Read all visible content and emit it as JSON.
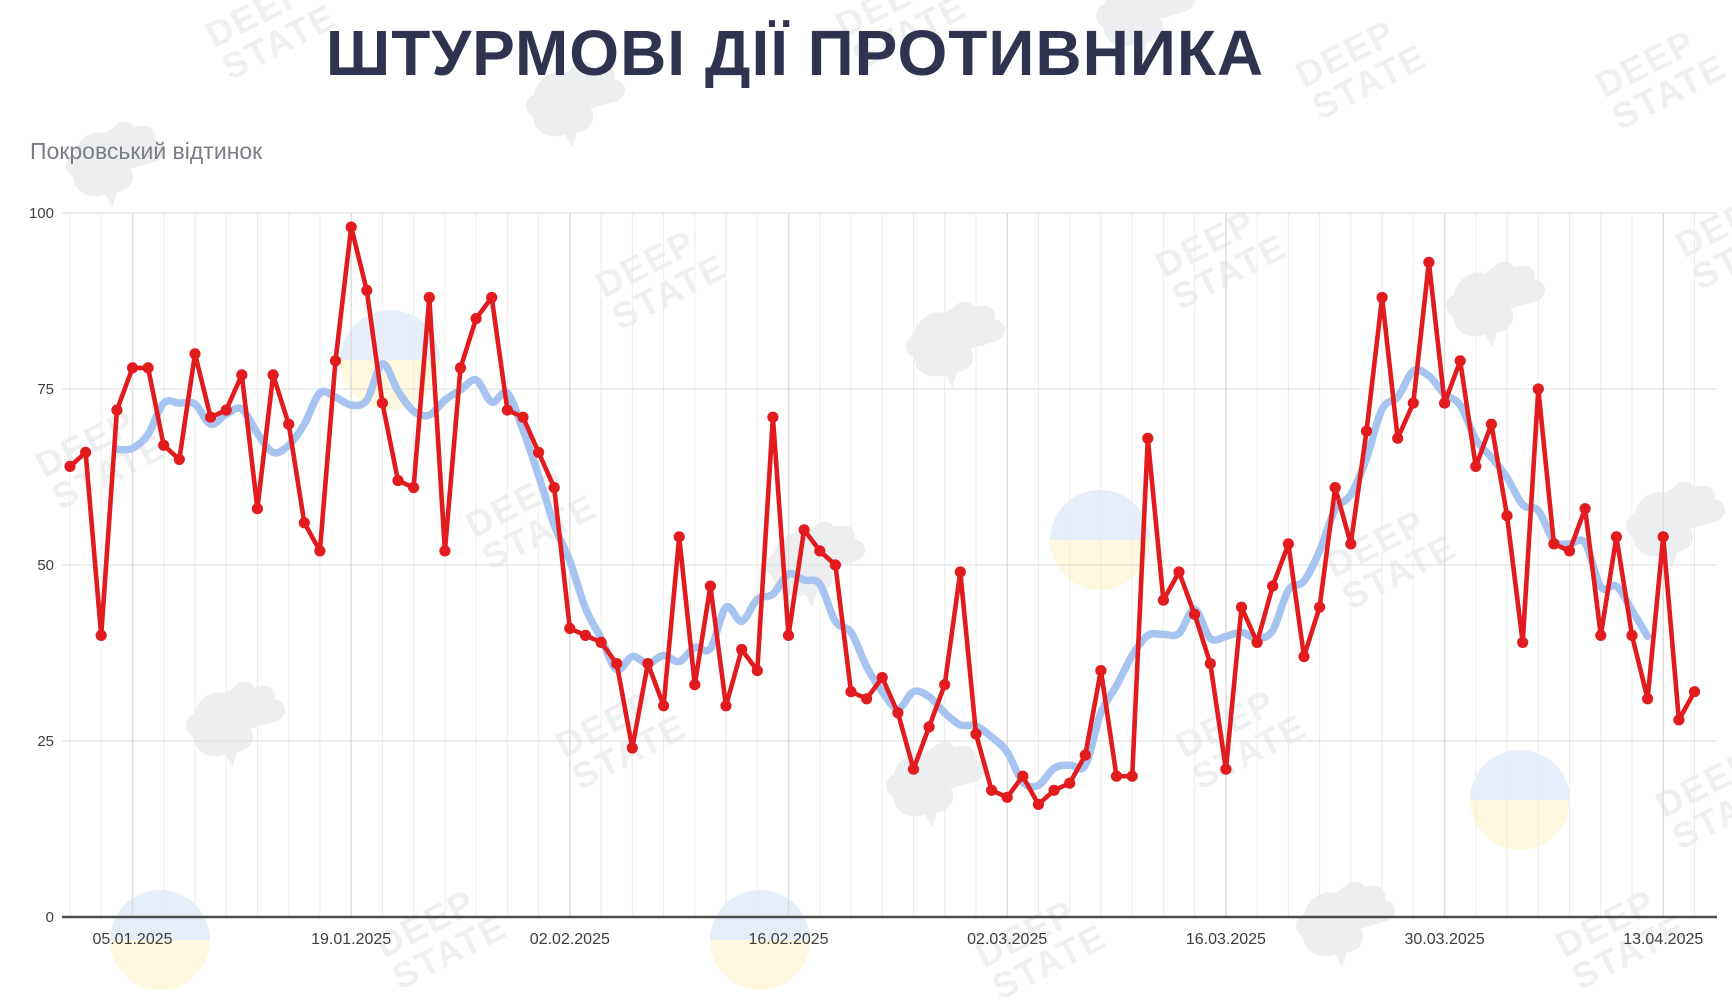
{
  "title": "ШТУРМОВІ ДІЇ ПРОТИВНИКА",
  "subtitle": "Покровський відтинок",
  "watermark": {
    "line1": "DEEP",
    "line2": "STATE"
  },
  "colors": {
    "title": "#2f3350",
    "subtitle": "#7b7e84",
    "daily_line": "#e11b1e",
    "moving_avg_line": "#a7c4f1",
    "gridline": "#dcdcdc",
    "minor_gridline": "#ececec",
    "axis_line": "#4d4d4d",
    "tick_label": "#3d3d3d",
    "background": "#ffffff"
  },
  "chart_data": {
    "type": "line",
    "title": "ШТУРМОВІ ДІЇ ПРОТИВНИКА",
    "subtitle": "Покровський відтинок",
    "xlabel": "",
    "ylabel": "",
    "ylim": [
      0,
      100
    ],
    "y_ticks": [
      0,
      25,
      50,
      75,
      100
    ],
    "grid": "both",
    "legend": "none",
    "x_start_date": "01.01.2025",
    "x_cadence": "daily",
    "x_tick_labels": [
      "05.01.2025",
      "19.01.2025",
      "02.02.2025",
      "16.02.2025",
      "02.03.2025",
      "16.03.2025",
      "30.03.2025",
      "13.04.2025"
    ],
    "x_tick_indices": [
      4,
      18,
      32,
      46,
      60,
      74,
      88,
      102
    ],
    "series": [
      {
        "name": "daily_assault_actions",
        "style": "line_with_markers",
        "color": "#e11b1e",
        "values": [
          64,
          66,
          40,
          72,
          78,
          78,
          67,
          65,
          80,
          71,
          72,
          77,
          58,
          77,
          70,
          56,
          52,
          79,
          98,
          89,
          73,
          62,
          61,
          88,
          52,
          78,
          85,
          88,
          72,
          71,
          66,
          61,
          41,
          40,
          39,
          36,
          24,
          36,
          30,
          54,
          33,
          47,
          30,
          38,
          35,
          71,
          40,
          55,
          52,
          50,
          32,
          31,
          34,
          29,
          21,
          27,
          33,
          49,
          26,
          18,
          17,
          20,
          16,
          18,
          19,
          23,
          35,
          20,
          20,
          68,
          45,
          49,
          43,
          36,
          21,
          44,
          39,
          47,
          53,
          37,
          44,
          61,
          53,
          69,
          88,
          68,
          73,
          93,
          73,
          79,
          64,
          70,
          57,
          39,
          75,
          53,
          52,
          58,
          40,
          54,
          40,
          31,
          54,
          28,
          32
        ]
      },
      {
        "name": "smoothed_trend",
        "style": "smooth_line",
        "color": "#a7c4f1",
        "derived": "7-day centered moving average of daily_assault_actions",
        "window": 7
      }
    ]
  }
}
